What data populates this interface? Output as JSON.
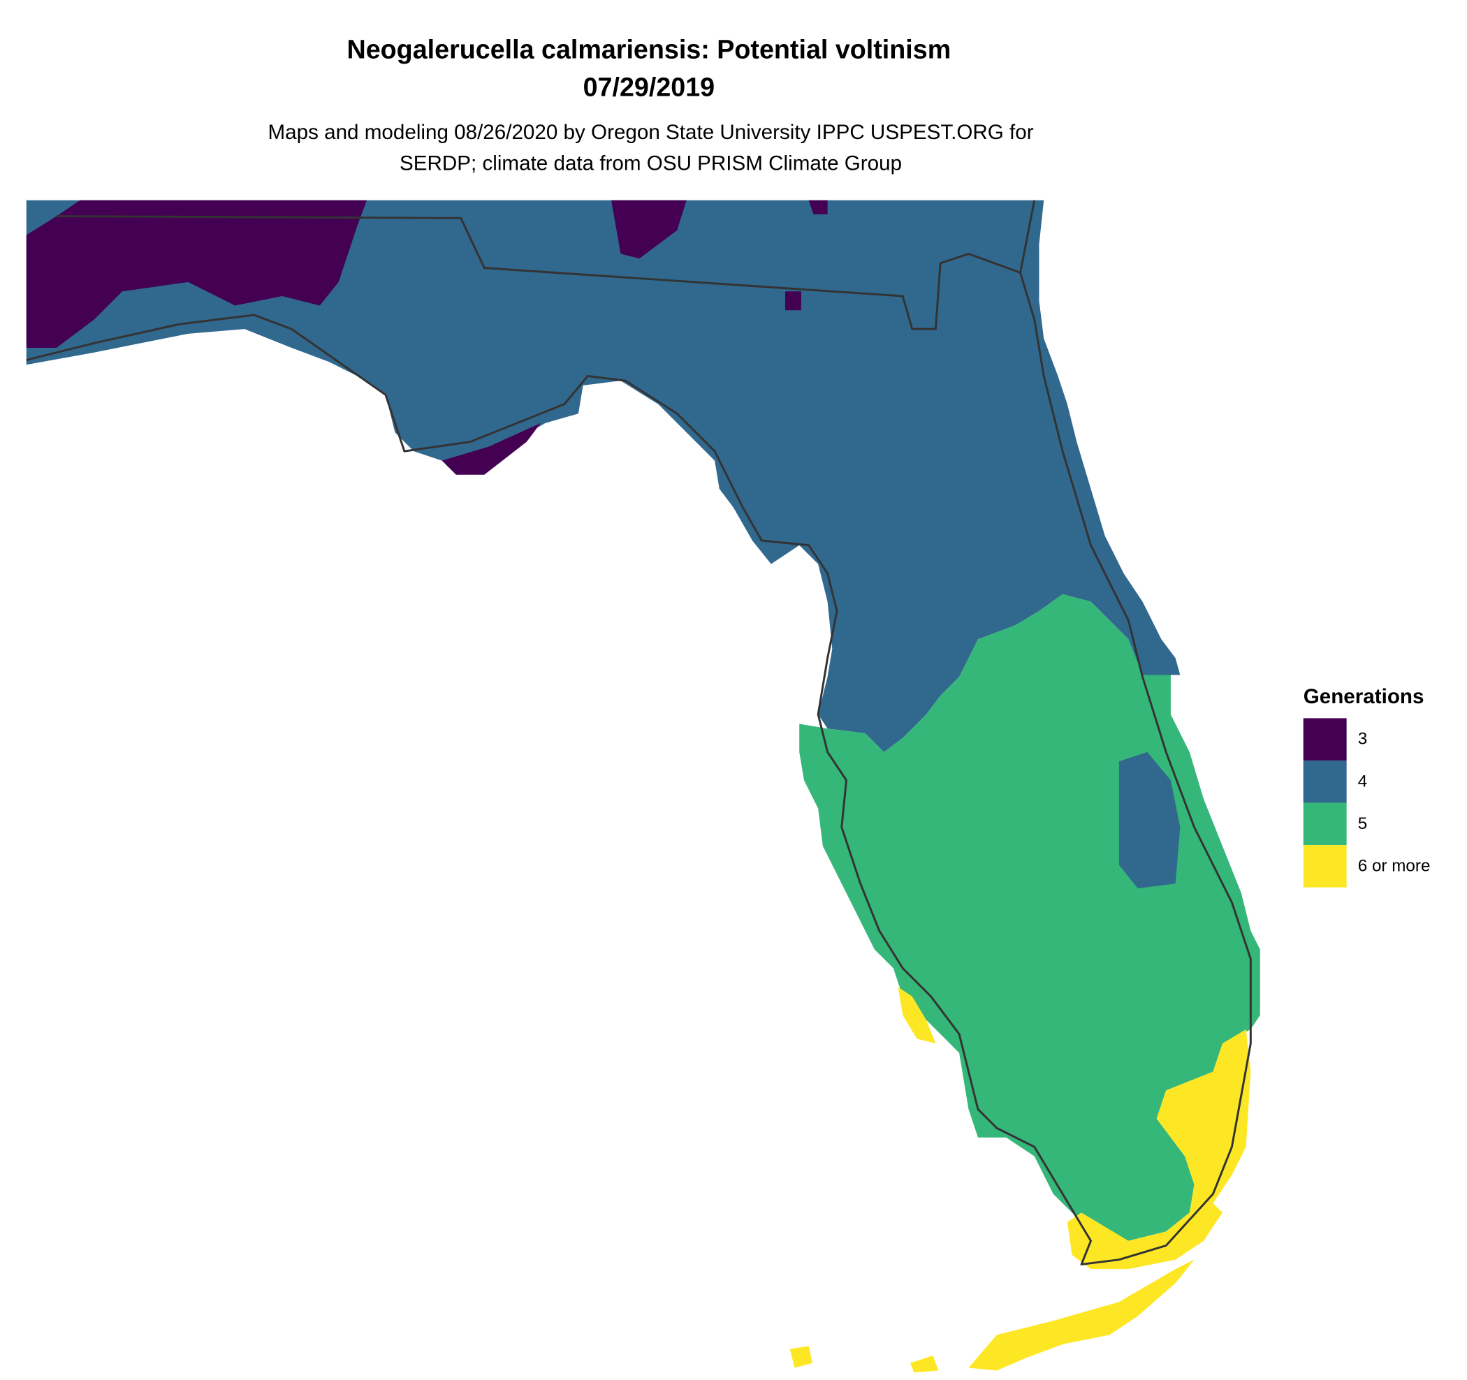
{
  "title": "Neogalerucella calmariensis: Potential voltinism",
  "date": "07/29/2019",
  "subtitle_lines": [
    "Maps and modeling 08/26/2020 by Oregon State University IPPC USPEST.ORG for",
    "SERDP; climate data from OSU PRISM Climate Group"
  ],
  "legend": {
    "title": "Generations",
    "items": [
      {
        "label": "3",
        "color": "#440154"
      },
      {
        "label": "4",
        "color": "#31688e"
      },
      {
        "label": "5",
        "color": "#35b779"
      },
      {
        "label": "6 or more",
        "color": "#fde725"
      }
    ]
  }
}
